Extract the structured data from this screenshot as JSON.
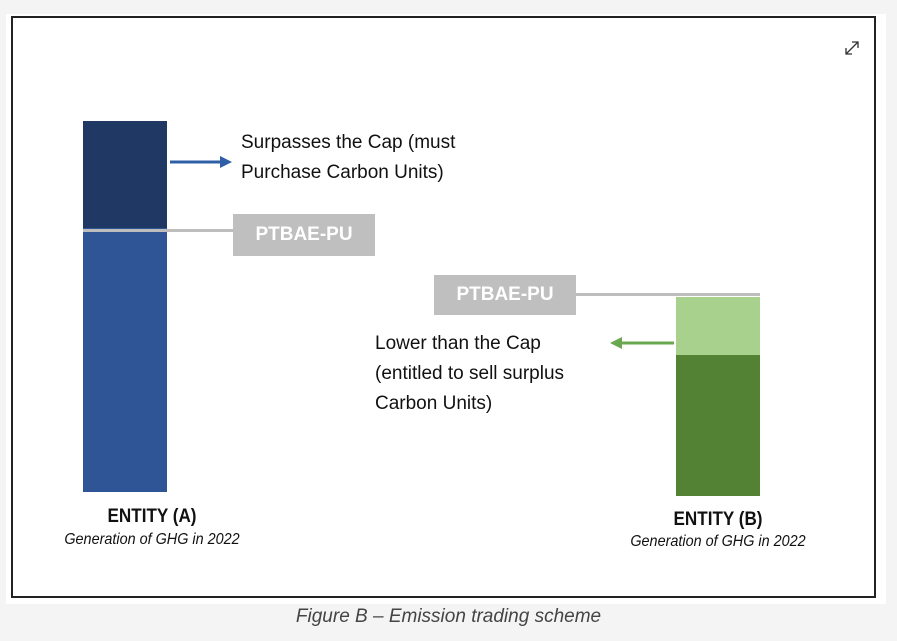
{
  "colors": {
    "entity_a_excess": "#1f3864",
    "entity_a_base": "#2f5597",
    "entity_b_surplus": "#a9d18e",
    "entity_b_base": "#548235",
    "cap_box": "#bfbfbf",
    "arrow_a": "#2f5fa7",
    "arrow_b": "#6aa84f"
  },
  "entity_a": {
    "name": "ENTITY (A)",
    "subtitle": "Generation of GHG in 2022",
    "cap_label": "PTBAE-PU",
    "note_line1": "Surpasses the Cap (must",
    "note_line2": "Purchase Carbon Units)"
  },
  "entity_b": {
    "name": "ENTITY (B)",
    "subtitle": "Generation of GHG in 2022",
    "cap_label": "PTBAE-PU",
    "note_line1": "Lower than the Cap",
    "note_line2": "(entitled to sell surplus",
    "note_line3": "Carbon Units)"
  },
  "caption": "Figure B – Emission trading scheme",
  "icons": {
    "expand": "expand-icon"
  }
}
